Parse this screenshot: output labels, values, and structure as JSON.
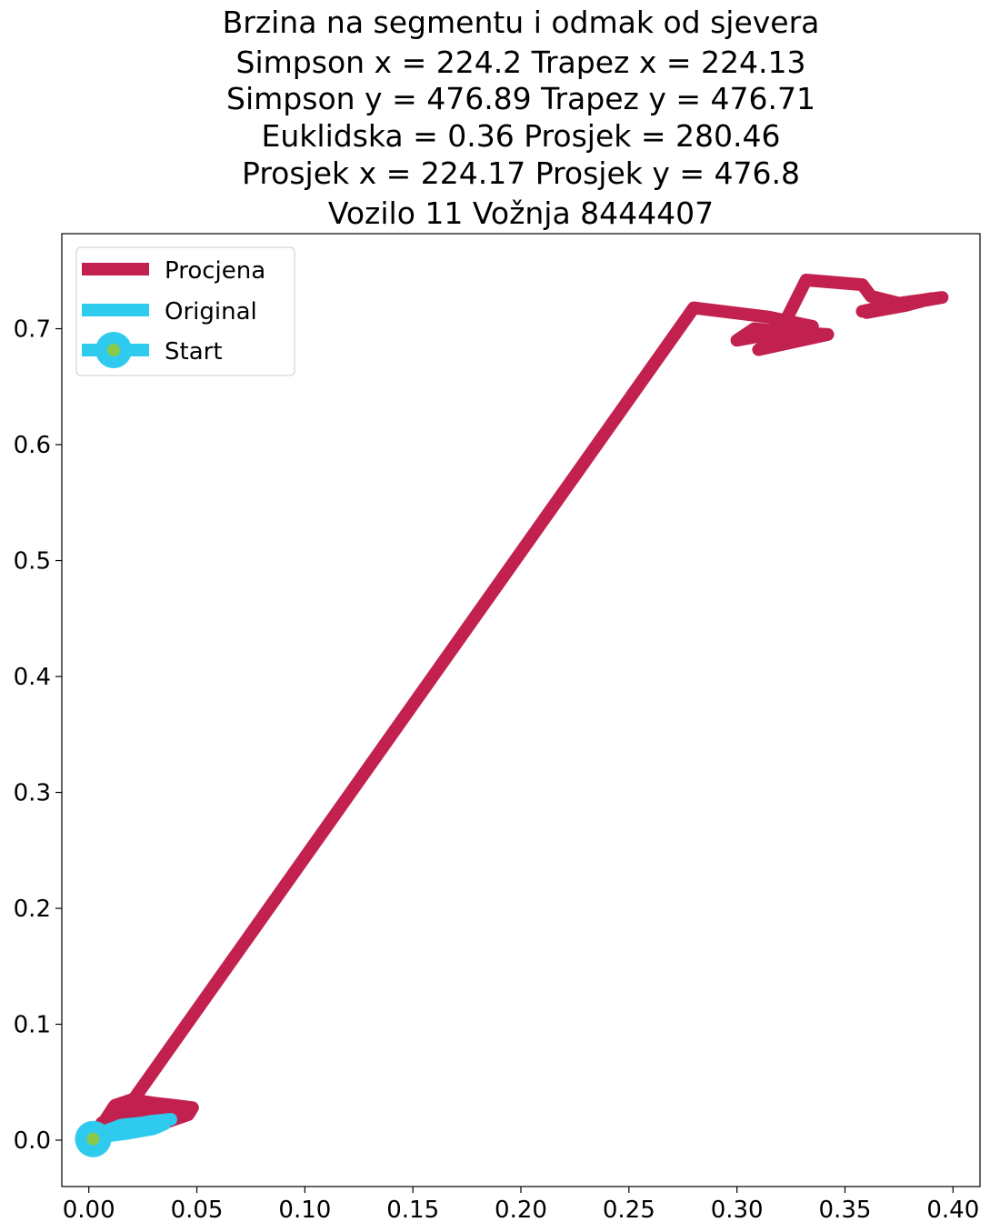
{
  "chart_data": {
    "type": "line",
    "title_lines": [
      "Brzina na segmentu i odmak od sjevera",
      "Simpson x = 224.2 Trapez x = 224.13",
      "Simpson y = 476.89 Trapez y = 476.71",
      "Euklidska = 0.36 Prosjek = 280.46",
      "Prosjek x = 224.17 Prosjek y = 476.8",
      "Vozilo 11 Vožnja 8444407"
    ],
    "xlabel": "",
    "ylabel": "",
    "xlim": [
      -0.0125,
      0.4125
    ],
    "ylim": [
      -0.04,
      0.782
    ],
    "xticks": [
      "0.00",
      "0.05",
      "0.10",
      "0.15",
      "0.20",
      "0.25",
      "0.30",
      "0.35",
      "0.40"
    ],
    "yticks": [
      "0.0",
      "0.1",
      "0.2",
      "0.3",
      "0.4",
      "0.5",
      "0.6",
      "0.7"
    ],
    "grid": false,
    "legend_position": "upper-left",
    "colors": {
      "procjena": "#c2214f",
      "original": "#2ecbef",
      "start_outer": "#2ecbef",
      "start_inner": "#8ac94a"
    },
    "series": [
      {
        "name": "Procjena",
        "x": [
          0.0,
          0.005,
          0.012,
          0.02,
          0.03,
          0.04,
          0.048,
          0.046,
          0.035,
          0.02,
          0.01,
          0.006,
          0.012,
          0.022,
          0.035,
          0.045,
          0.035,
          0.02,
          0.012,
          0.018,
          0.28,
          0.315,
          0.335,
          0.3,
          0.308,
          0.325,
          0.342,
          0.31,
          0.318,
          0.332,
          0.358,
          0.362,
          0.375,
          0.395,
          0.358,
          0.365,
          0.39,
          0.378,
          0.36
        ],
        "y": [
          0.0,
          0.01,
          0.03,
          0.035,
          0.032,
          0.03,
          0.028,
          0.022,
          0.015,
          0.008,
          0.005,
          0.015,
          0.022,
          0.025,
          0.024,
          0.022,
          0.018,
          0.012,
          0.018,
          0.028,
          0.718,
          0.71,
          0.702,
          0.69,
          0.7,
          0.697,
          0.695,
          0.682,
          0.69,
          0.742,
          0.738,
          0.728,
          0.722,
          0.727,
          0.715,
          0.718,
          0.726,
          0.72,
          0.714
        ]
      },
      {
        "name": "Original",
        "x": [
          0.002,
          0.008,
          0.015,
          0.025,
          0.035,
          0.03,
          0.018,
          0.01,
          0.014,
          0.028,
          0.038
        ],
        "y": [
          0.0,
          0.008,
          0.013,
          0.015,
          0.014,
          0.01,
          0.006,
          0.004,
          0.01,
          0.016,
          0.018
        ]
      },
      {
        "name": "Start",
        "x": [
          0.002
        ],
        "y": [
          0.001
        ]
      }
    ]
  }
}
